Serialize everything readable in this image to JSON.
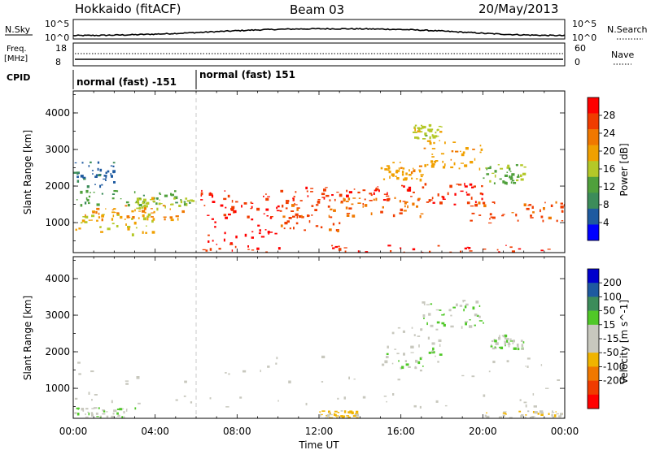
{
  "header": {
    "station": "Hokkaido (fitACF)",
    "beam": "Beam 03",
    "date": "20/May/2013"
  },
  "top_panels": {
    "nsky": {
      "label": "N.Sky",
      "tick_top": "10^5",
      "tick_bottom": "10^0"
    },
    "nsearch": {
      "label": "N.Search",
      "tick_top": "10^5",
      "tick_bottom": "10^0"
    },
    "freq": {
      "label_line1": "Freq.",
      "label_line2": "[MHz]",
      "tick_top": "18",
      "tick_bottom": "8"
    },
    "nave": {
      "label": "Nave",
      "tick_top": "60",
      "tick_bottom": "0"
    },
    "cpid": {
      "label": "CPID",
      "modes": [
        {
          "text": "normal (fast) -151"
        },
        {
          "text": "normal (fast) 151"
        }
      ]
    }
  },
  "colors": {
    "power_scale": [
      "#0000ff",
      "#1e5aa0",
      "#3c8c5a",
      "#50a03c",
      "#b4c828",
      "#f0a000",
      "#f07800",
      "#f03c00",
      "#ff0000"
    ],
    "velocity_scale": [
      "#ff0000",
      "#f03c00",
      "#f07800",
      "#f0b400",
      "#c8c8be",
      "#c8c8be",
      "#50c828",
      "#3c8c5a",
      "#1e5aa0",
      "#0000cd"
    ]
  },
  "chart_data": [
    {
      "type": "heatmap",
      "quantity": "power",
      "ylabel": "Slant Range [km]",
      "xlabel": "Time UT",
      "x_ticks": [
        "00:00",
        "04:00",
        "08:00",
        "12:00",
        "16:00",
        "20:00",
        "00:00"
      ],
      "x_range_hours": [
        0,
        24
      ],
      "y_ticks": [
        "1000",
        "2000",
        "3000",
        "4000"
      ],
      "y_range_km": [
        180,
        4600
      ],
      "colorbar_label": "Power [dB]",
      "colorbar_ticks": [
        "4",
        "8",
        "12",
        "16",
        "20",
        "24",
        "28"
      ],
      "colorbar_range": [
        0,
        32
      ],
      "regions": [
        {
          "t0": 0.0,
          "t1": 6.0,
          "r0": 1500,
          "r1": 1900,
          "value": 12
        },
        {
          "t0": 0.0,
          "t1": 4.0,
          "r0": 700,
          "r1": 1300,
          "value": 18
        },
        {
          "t0": 0.5,
          "t1": 5.5,
          "r0": 1100,
          "r1": 1500,
          "value": 22
        },
        {
          "t0": 0.0,
          "t1": 2.0,
          "r0": 2000,
          "r1": 2700,
          "value": 6
        },
        {
          "t0": 3.0,
          "t1": 6.0,
          "r0": 1400,
          "r1": 1700,
          "value": 16
        },
        {
          "t0": 6.5,
          "t1": 10.0,
          "r0": 300,
          "r1": 1500,
          "value": 30
        },
        {
          "t0": 6.0,
          "t1": 11.0,
          "r0": 1400,
          "r1": 1900,
          "value": 28
        },
        {
          "t0": 10.0,
          "t1": 13.0,
          "r0": 800,
          "r1": 1600,
          "value": 26
        },
        {
          "t0": 11.0,
          "t1": 16.0,
          "r0": 1600,
          "r1": 2000,
          "value": 28
        },
        {
          "t0": 13.0,
          "t1": 17.0,
          "r0": 1200,
          "r1": 1700,
          "value": 24
        },
        {
          "t0": 16.0,
          "t1": 20.0,
          "r0": 1500,
          "r1": 2100,
          "value": 28
        },
        {
          "t0": 19.0,
          "t1": 24.0,
          "r0": 1000,
          "r1": 1600,
          "value": 26
        },
        {
          "t0": 15.0,
          "t1": 17.0,
          "r0": 2200,
          "r1": 2700,
          "value": 20
        },
        {
          "t0": 17.0,
          "t1": 20.0,
          "r0": 2500,
          "r1": 3300,
          "value": 20
        },
        {
          "t0": 16.5,
          "t1": 18.0,
          "r0": 3300,
          "r1": 3700,
          "value": 16
        },
        {
          "t0": 20.0,
          "t1": 22.0,
          "r0": 2100,
          "r1": 2600,
          "value": 14
        },
        {
          "t0": 6.0,
          "t1": 24.0,
          "r0": 200,
          "r1": 400,
          "value": 28
        }
      ]
    },
    {
      "type": "heatmap",
      "quantity": "velocity",
      "ylabel": "Slant Range [km]",
      "xlabel": "Time UT",
      "x_ticks": [
        "00:00",
        "04:00",
        "08:00",
        "12:00",
        "16:00",
        "20:00",
        "00:00"
      ],
      "x_range_hours": [
        0,
        24
      ],
      "y_ticks": [
        "1000",
        "2000",
        "3000",
        "4000"
      ],
      "y_range_km": [
        180,
        4600
      ],
      "colorbar_label": "Velocity [m s^-1]",
      "colorbar_ticks": [
        "200",
        "100",
        "50",
        "15",
        "-15",
        "-50",
        "-100",
        "-200"
      ],
      "colorbar_range": [
        -250,
        250
      ],
      "regions": [
        {
          "t0": 0.0,
          "t1": 24.0,
          "r0": 500,
          "r1": 1900,
          "value": 0
        },
        {
          "t0": 0.0,
          "t1": 3.0,
          "r0": 200,
          "r1": 500,
          "value": 40
        },
        {
          "t0": 15.0,
          "t1": 18.0,
          "r0": 1500,
          "r1": 2700,
          "value": 35
        },
        {
          "t0": 17.0,
          "t1": 20.0,
          "r0": 2700,
          "r1": 3500,
          "value": 45
        },
        {
          "t0": 20.0,
          "t1": 22.0,
          "r0": 2100,
          "r1": 2500,
          "value": 40
        },
        {
          "t0": 12.0,
          "t1": 14.0,
          "r0": 200,
          "r1": 400,
          "value": -60
        },
        {
          "t0": 20.0,
          "t1": 24.0,
          "r0": 200,
          "r1": 400,
          "value": -40
        }
      ]
    }
  ]
}
